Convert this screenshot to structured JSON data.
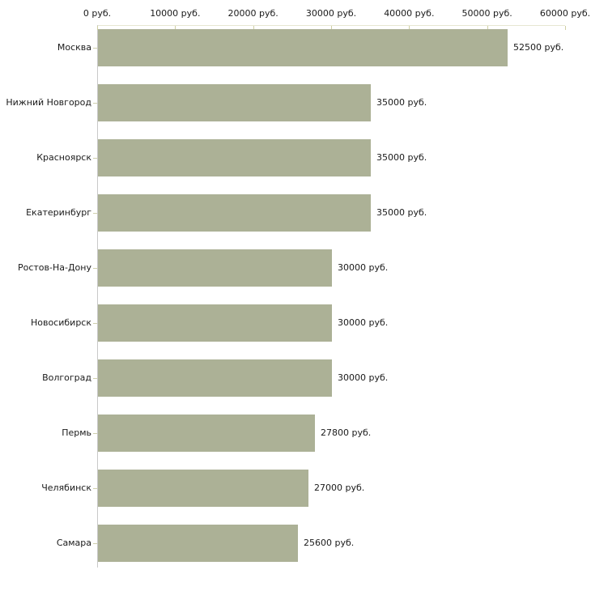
{
  "chart_data": {
    "type": "bar",
    "orientation": "horizontal",
    "title": "",
    "xlabel": "",
    "ylabel": "",
    "grid": false,
    "legend": false,
    "categories": [
      "Москва",
      "Нижний Новгород",
      "Красноярск",
      "Екатеринбург",
      "Ростов-На-Дону",
      "Новосибирск",
      "Волгоград",
      "Пермь",
      "Челябинск",
      "Самара"
    ],
    "values": [
      52500,
      35000,
      35000,
      35000,
      30000,
      30000,
      30000,
      27800,
      27000,
      25600
    ],
    "value_labels": [
      "52500 руб.",
      "35000 руб.",
      "35000 руб.",
      "35000 руб.",
      "30000 руб.",
      "30000 руб.",
      "30000 руб.",
      "27800 руб.",
      "27000 руб.",
      "25600 руб."
    ],
    "x_axis": {
      "position": "top",
      "range": [
        0,
        60000
      ],
      "ticks": [
        0,
        10000,
        20000,
        30000,
        40000,
        50000,
        60000
      ],
      "tick_labels": [
        "0 руб.",
        "10000 руб.",
        "20000 руб.",
        "30000 руб.",
        "40000 руб.",
        "50000 руб.",
        "60000 руб."
      ]
    },
    "colors": {
      "bar": "#acb196",
      "axis_line": "#e6e6d2",
      "tick_mark": "#cfcfa4",
      "category_axis_line": "#c9c9c9",
      "category_tick_mark": "#cfcfad",
      "text": "#1a1a1a",
      "background": "#ffffff"
    }
  }
}
